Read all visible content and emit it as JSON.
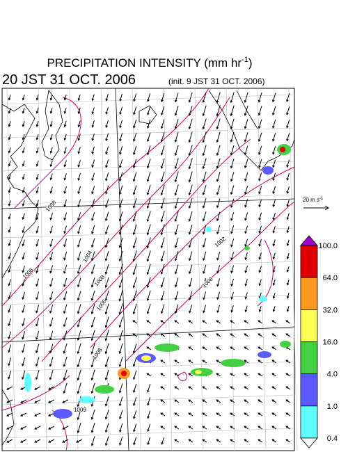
{
  "title": {
    "text": "PRECIPITATION INTENSITY (mm hr",
    "sup": "-1",
    "end": ")"
  },
  "valid_time": "20 JST 31 OCT. 2006",
  "init_time": "(init. 9 JST 31 OCT. 2006)",
  "wind_scale": {
    "text": "20 m s",
    "sup": "-1"
  },
  "colorbar": {
    "levels": [
      {
        "value": 100,
        "label": "100.0"
      },
      {
        "value": 64,
        "label": "64.0"
      },
      {
        "value": 32,
        "label": "32.0"
      },
      {
        "value": 16,
        "label": "16.0"
      },
      {
        "value": 4,
        "label": "4.0"
      },
      {
        "value": 1,
        "label": "1.0"
      },
      {
        "value": 0.4,
        "label": "0.4"
      }
    ],
    "colors": [
      "#a000d0",
      "#e00000",
      "#ff9a20",
      "#ffff55",
      "#44d044",
      "#5a5aff",
      "#60ffff",
      "#ffffff"
    ]
  },
  "isobar_labels": [
    "1008",
    "1006",
    "1004",
    "1008",
    "1006",
    "1008",
    "1002",
    "1009",
    "1008"
  ]
}
